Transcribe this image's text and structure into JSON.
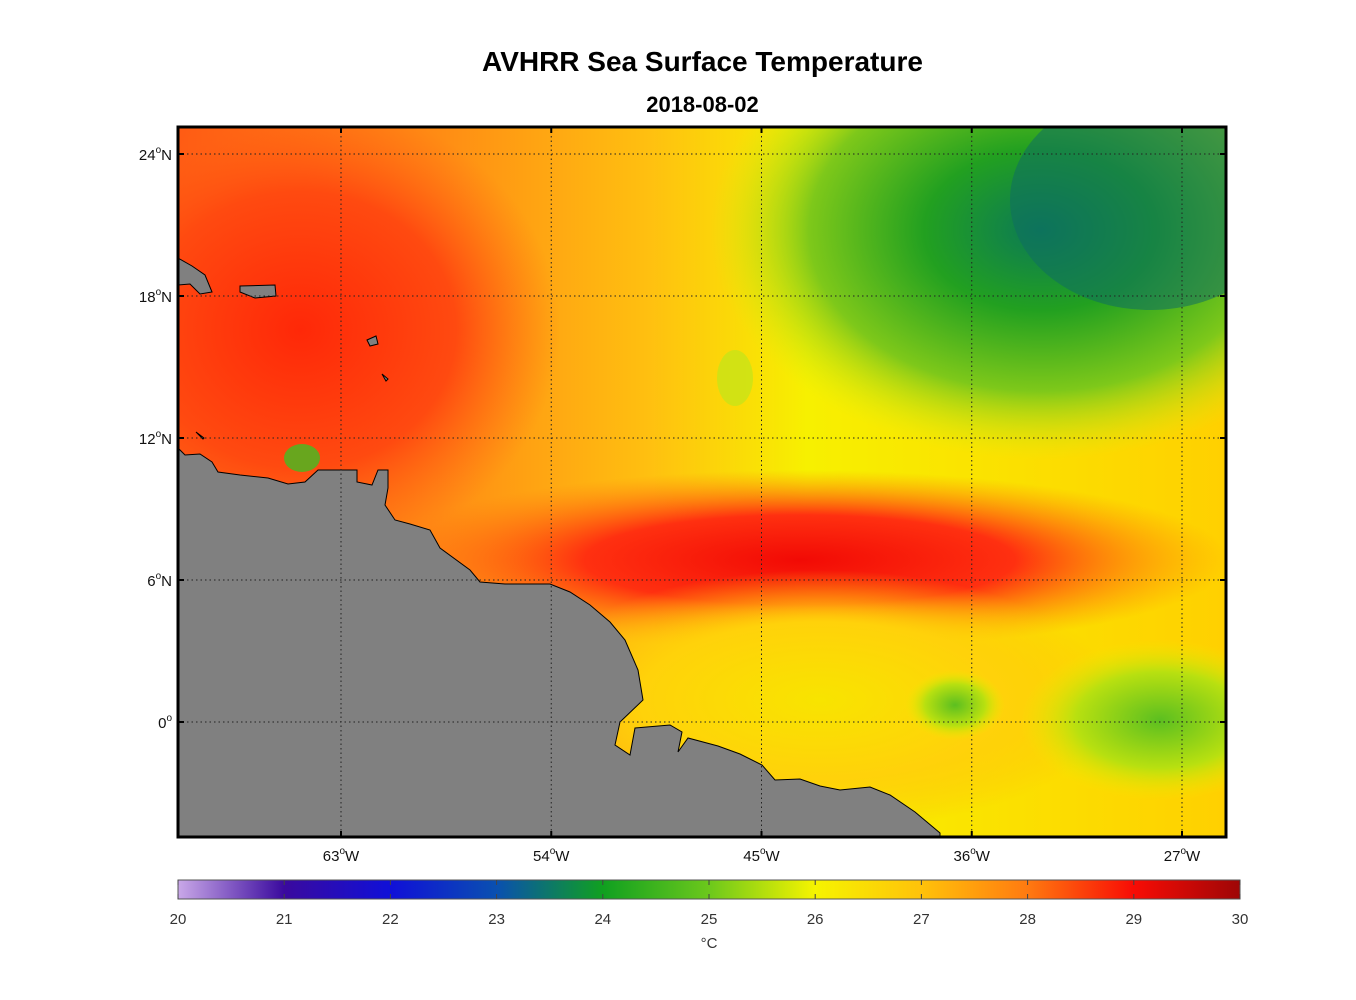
{
  "title": "AVHRR Sea Surface Temperature",
  "subtitle": "2018-08-02",
  "map": {
    "lat_ticks": [
      {
        "value": 24,
        "label": "24",
        "hemi": "N"
      },
      {
        "value": 18,
        "label": "18",
        "hemi": "N"
      },
      {
        "value": 12,
        "label": "12",
        "hemi": "N"
      },
      {
        "value": 6,
        "label": "6",
        "hemi": "N"
      },
      {
        "value": 0,
        "label": "0",
        "hemi": ""
      }
    ],
    "lon_ticks": [
      {
        "value": -63,
        "label": "63",
        "hemi": "W"
      },
      {
        "value": -54,
        "label": "54",
        "hemi": "W"
      },
      {
        "value": -45,
        "label": "45",
        "hemi": "W"
      },
      {
        "value": -36,
        "label": "36",
        "hemi": "W"
      },
      {
        "value": -27,
        "label": "27",
        "hemi": "W"
      }
    ],
    "land_color": "#808080",
    "grid": "dotted"
  },
  "colorbar": {
    "min": 20,
    "max": 30,
    "ticks": [
      "20",
      "21",
      "22",
      "23",
      "24",
      "25",
      "26",
      "27",
      "28",
      "29",
      "30"
    ],
    "unit": "°C"
  }
}
